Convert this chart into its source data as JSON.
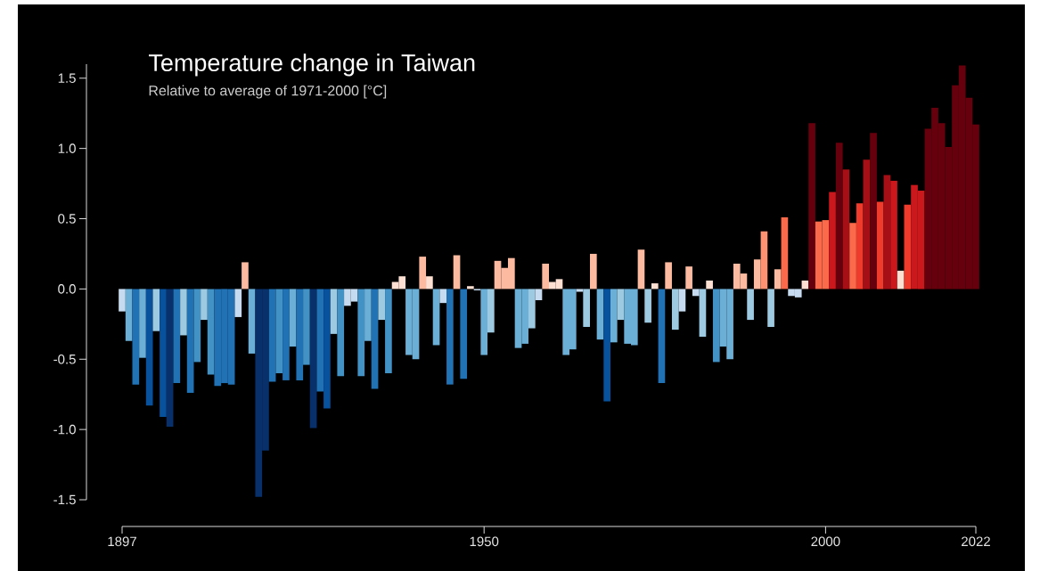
{
  "chart_data": {
    "type": "bar",
    "title": "Temperature change in Taiwan",
    "subtitle": "Relative to average of 1971-2000 [°C]",
    "x": [
      1897,
      1898,
      1899,
      1900,
      1901,
      1902,
      1903,
      1904,
      1905,
      1906,
      1907,
      1908,
      1909,
      1910,
      1911,
      1912,
      1913,
      1914,
      1915,
      1916,
      1917,
      1918,
      1919,
      1920,
      1921,
      1922,
      1923,
      1924,
      1925,
      1926,
      1927,
      1928,
      1929,
      1930,
      1931,
      1932,
      1933,
      1934,
      1935,
      1936,
      1937,
      1938,
      1939,
      1940,
      1941,
      1942,
      1943,
      1944,
      1945,
      1946,
      1947,
      1948,
      1949,
      1950,
      1951,
      1952,
      1953,
      1954,
      1955,
      1956,
      1957,
      1958,
      1959,
      1960,
      1961,
      1962,
      1963,
      1964,
      1965,
      1966,
      1967,
      1968,
      1969,
      1970,
      1971,
      1972,
      1973,
      1974,
      1975,
      1976,
      1977,
      1978,
      1979,
      1980,
      1981,
      1982,
      1983,
      1984,
      1985,
      1986,
      1987,
      1988,
      1989,
      1990,
      1991,
      1992,
      1993,
      1994,
      1995,
      1996,
      1997,
      1998,
      1999,
      2000,
      2001,
      2002,
      2003,
      2004,
      2005,
      2006,
      2007,
      2008,
      2009,
      2010,
      2011,
      2012,
      2013,
      2014,
      2015,
      2016,
      2017,
      2018,
      2019,
      2020,
      2021,
      2022
    ],
    "values": [
      -0.16,
      -0.37,
      -0.68,
      -0.49,
      -0.83,
      -0.3,
      -0.91,
      -0.98,
      -0.67,
      -0.33,
      -0.74,
      -0.52,
      -0.22,
      -0.61,
      -0.69,
      -0.67,
      -0.68,
      -0.2,
      0.19,
      -0.46,
      -1.48,
      -1.15,
      -0.66,
      -0.6,
      -0.65,
      -0.41,
      -0.65,
      -0.54,
      -0.99,
      -0.73,
      -0.85,
      -0.32,
      -0.62,
      -0.12,
      -0.09,
      -0.62,
      -0.37,
      -0.71,
      -0.22,
      -0.6,
      0.05,
      0.09,
      -0.47,
      -0.5,
      0.23,
      0.09,
      -0.4,
      -0.1,
      -0.68,
      0.24,
      -0.64,
      0.02,
      -0.01,
      -0.47,
      -0.31,
      0.2,
      0.15,
      0.22,
      -0.42,
      -0.39,
      -0.28,
      -0.08,
      0.18,
      0.05,
      0.07,
      -0.47,
      -0.43,
      -0.02,
      -0.27,
      0.25,
      -0.36,
      -0.8,
      -0.38,
      -0.22,
      -0.39,
      -0.4,
      0.28,
      -0.24,
      0.04,
      -0.67,
      0.19,
      -0.29,
      -0.16,
      0.16,
      -0.05,
      -0.34,
      0.06,
      -0.52,
      -0.41,
      -0.5,
      0.18,
      0.11,
      -0.22,
      0.21,
      0.41,
      -0.27,
      0.14,
      0.51,
      -0.05,
      -0.06,
      0.06,
      1.18,
      0.48,
      0.49,
      0.69,
      1.04,
      0.85,
      0.47,
      0.61,
      0.92,
      1.11,
      0.62,
      0.81,
      0.77,
      0.13,
      0.6,
      0.74,
      0.7,
      1.14,
      1.29,
      1.18,
      1.01,
      1.45,
      1.59,
      1.36,
      1.17
    ],
    "colors": [
      "#c6dbef",
      "#6baed6",
      "#2171b5",
      "#6baed6",
      "#08519c",
      "#9ecae1",
      "#08519c",
      "#08306b",
      "#2171b5",
      "#9ecae1",
      "#2171b5",
      "#4292c6",
      "#9ecae1",
      "#4292c6",
      "#2171b5",
      "#2171b5",
      "#2171b5",
      "#c6dbef",
      "#fcbba1",
      "#6baed6",
      "#08306b",
      "#08306b",
      "#2171b5",
      "#4292c6",
      "#2171b5",
      "#6baed6",
      "#2171b5",
      "#4292c6",
      "#08306b",
      "#2171b5",
      "#08519c",
      "#9ecae1",
      "#4292c6",
      "#c6dbef",
      "#c6dbef",
      "#4292c6",
      "#6baed6",
      "#2171b5",
      "#9ecae1",
      "#4292c6",
      "#fee0d2",
      "#fee0d2",
      "#6baed6",
      "#6baed6",
      "#fcbba1",
      "#fee0d2",
      "#6baed6",
      "#c6dbef",
      "#2171b5",
      "#fcbba1",
      "#2171b5",
      "#fee0d2",
      "#c6dbef",
      "#6baed6",
      "#9ecae1",
      "#fcbba1",
      "#fcbba1",
      "#fcbba1",
      "#6baed6",
      "#6baed6",
      "#9ecae1",
      "#c6dbef",
      "#fcbba1",
      "#fee0d2",
      "#fee0d2",
      "#6baed6",
      "#6baed6",
      "#c6dbef",
      "#9ecae1",
      "#fcbba1",
      "#6baed6",
      "#08519c",
      "#6baed6",
      "#9ecae1",
      "#6baed6",
      "#6baed6",
      "#fcbba1",
      "#9ecae1",
      "#fee0d2",
      "#2171b5",
      "#fcbba1",
      "#9ecae1",
      "#c6dbef",
      "#fcbba1",
      "#c6dbef",
      "#9ecae1",
      "#fee0d2",
      "#4292c6",
      "#6baed6",
      "#6baed6",
      "#fcbba1",
      "#fcbba1",
      "#9ecae1",
      "#fcbba1",
      "#fc9272",
      "#9ecae1",
      "#fcbba1",
      "#fb6a4a",
      "#c6dbef",
      "#c6dbef",
      "#fee0d2",
      "#67000d",
      "#fb6a4a",
      "#fb6a4a",
      "#cb181d",
      "#67000d",
      "#a50f15",
      "#fb6a4a",
      "#ef3b2c",
      "#a50f15",
      "#67000d",
      "#ef3b2c",
      "#a50f15",
      "#cb181d",
      "#fee0d2",
      "#ef3b2c",
      "#cb181d",
      "#cb181d",
      "#67000d",
      "#67000d",
      "#67000d",
      "#67000d",
      "#67000d",
      "#67000d",
      "#67000d",
      "#67000d"
    ],
    "xlim": [
      1897,
      2022
    ],
    "xticks": [
      1897,
      1950,
      2000,
      2022
    ],
    "ylim": [
      -1.5,
      1.6
    ],
    "yticks": [
      {
        "value": -1.5,
        "label": "-1.5"
      },
      {
        "value": -1.0,
        "label": "-1.0"
      },
      {
        "value": -0.5,
        "label": "-0.5"
      },
      {
        "value": 0,
        "label": "0.0"
      },
      {
        "value": 0.5,
        "label": "0.5"
      },
      {
        "value": 1.0,
        "label": "1.0"
      },
      {
        "value": 1.5,
        "label": "1.5"
      }
    ]
  }
}
